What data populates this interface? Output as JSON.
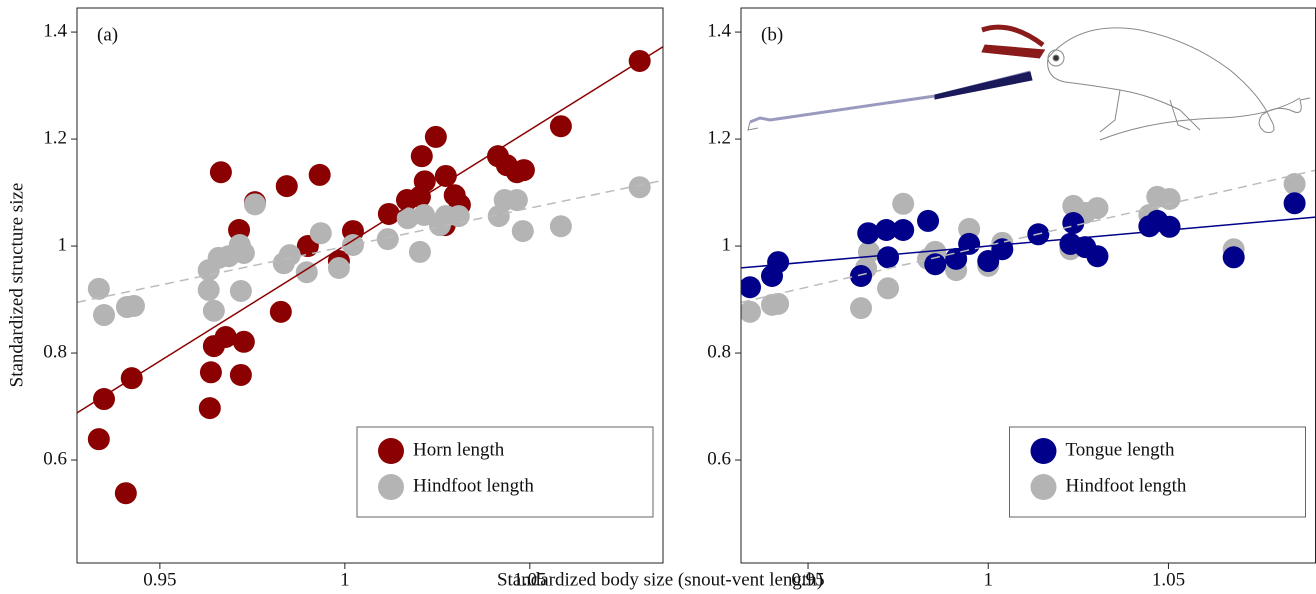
{
  "xlabel": "Standardized body size (snout-vent length)",
  "ylabel": "Standardized structure size",
  "chart_data": [
    {
      "type": "scatter",
      "annotation": "(a)",
      "legend": "lower right",
      "xlim": [
        0.9276,
        1.086
      ],
      "ylim": [
        0.4075,
        1.445
      ],
      "xticks": [
        0.95,
        1,
        1.05
      ],
      "yticks": [
        0.6,
        0.8,
        1,
        1.2,
        1.4
      ],
      "series": [
        {
          "name": "Horn length",
          "color": "#8b0000",
          "line_style": "solid",
          "fit_intercept": -3.319,
          "fit_slope": 4.32,
          "x": [
            1.0797,
            1.0584,
            0.9335,
            0.9349,
            0.9424,
            0.9408,
            0.9665,
            0.9638,
            0.9646,
            0.9678,
            0.9635,
            0.9714,
            0.9757,
            0.9727,
            0.9719,
            0.9843,
            0.9932,
            0.9827,
            0.99,
            0.9984,
            1.0022,
            1.0119,
            1.0168,
            1.0203,
            1.0208,
            1.0216,
            1.0246,
            1.0273,
            1.027,
            1.0297,
            1.0311,
            1.0414,
            1.0438,
            1.0465,
            1.0484
          ],
          "values": [
            1.346,
            1.224,
            0.639,
            0.714,
            0.753,
            0.538,
            1.138,
            0.764,
            0.813,
            0.83,
            0.697,
            1.03,
            1.082,
            0.821,
            0.759,
            1.112,
            1.133,
            0.877,
            1.0,
            0.972,
            1.028,
            1.06,
            1.086,
            1.092,
            1.168,
            1.121,
            1.204,
            1.131,
            1.039,
            1.095,
            1.077,
            1.168,
            1.151,
            1.138,
            1.142
          ]
        },
        {
          "name": "Hindfoot length",
          "color": "#b4b4b4",
          "line_style": "dashed",
          "fit_intercept": -0.441,
          "fit_slope": 1.44,
          "x": [
            0.9335,
            0.9349,
            0.9411,
            0.943,
            0.9632,
            0.9632,
            0.9646,
            0.9659,
            0.9686,
            0.9716,
            0.9727,
            0.9719,
            0.9757,
            0.9835,
            0.9851,
            0.9897,
            0.9935,
            0.9984,
            1.0022,
            1.0116,
            1.017,
            1.0203,
            1.0214,
            1.0257,
            1.0273,
            1.0308,
            1.0416,
            1.0432,
            1.0465,
            1.0481,
            1.0584,
            1.0797
          ],
          "values": [
            0.92,
            0.871,
            0.886,
            0.888,
            0.955,
            0.918,
            0.879,
            0.978,
            0.981,
            1.002,
            0.987,
            0.916,
            1.078,
            0.968,
            0.983,
            0.951,
            1.024,
            0.959,
            1.002,
            1.013,
            1.052,
            0.989,
            1.058,
            1.039,
            1.056,
            1.056,
            1.056,
            1.086,
            1.086,
            1.028,
            1.037,
            1.11
          ]
        }
      ]
    },
    {
      "type": "scatter",
      "annotation": "(b)",
      "legend": "lower right",
      "xlim": [
        0.9314,
        1.0908
      ],
      "ylim": [
        0.4075,
        1.445
      ],
      "xticks": [
        0.95,
        1,
        1.05
      ],
      "yticks": [
        0.6,
        0.8,
        1,
        1.2,
        1.4
      ],
      "series": [
        {
          "name": "Hindfoot length",
          "color": "#b4b4b4",
          "line_style": "dashed",
          "fit_intercept": -0.549,
          "fit_slope": 1.55,
          "x": [
            0.9339,
            0.94,
            0.9417,
            0.9647,
            0.9661,
            0.9669,
            0.9722,
            0.9764,
            0.9833,
            0.9853,
            0.9911,
            0.9947,
            1.0,
            1.0039,
            1.0228,
            1.0236,
            1.0269,
            1.0303,
            1.0447,
            1.0469,
            1.0503,
            1.0681,
            1.085
          ],
          "values": [
            0.877,
            0.89,
            0.892,
            0.884,
            0.959,
            0.989,
            0.921,
            1.079,
            0.976,
            0.989,
            0.955,
            1.032,
            0.963,
            1.006,
            0.994,
            1.075,
            1.062,
            1.071,
            1.058,
            1.092,
            1.088,
            0.994,
            1.116
          ]
        },
        {
          "name": "Tongue length",
          "color": "#00008b",
          "line_style": "solid",
          "fit_intercept": 0.404,
          "fit_slope": 0.596,
          "x": [
            0.9339,
            0.94,
            0.9417,
            0.9647,
            0.9667,
            0.9717,
            0.9722,
            0.9764,
            0.9833,
            0.9853,
            0.9911,
            0.9947,
            1.0,
            1.0039,
            1.0139,
            1.0228,
            1.0236,
            1.0269,
            1.0303,
            1.0447,
            1.0469,
            1.0503,
            1.0681,
            1.085
          ],
          "values": [
            0.923,
            0.944,
            0.97,
            0.944,
            1.024,
            1.03,
            0.979,
            1.03,
            1.047,
            0.966,
            0.976,
            1.004,
            0.972,
            0.994,
            1.022,
            1.004,
            1.043,
            0.998,
            0.981,
            1.037,
            1.047,
            1.036,
            0.979,
            1.08
          ]
        }
      ]
    }
  ]
}
